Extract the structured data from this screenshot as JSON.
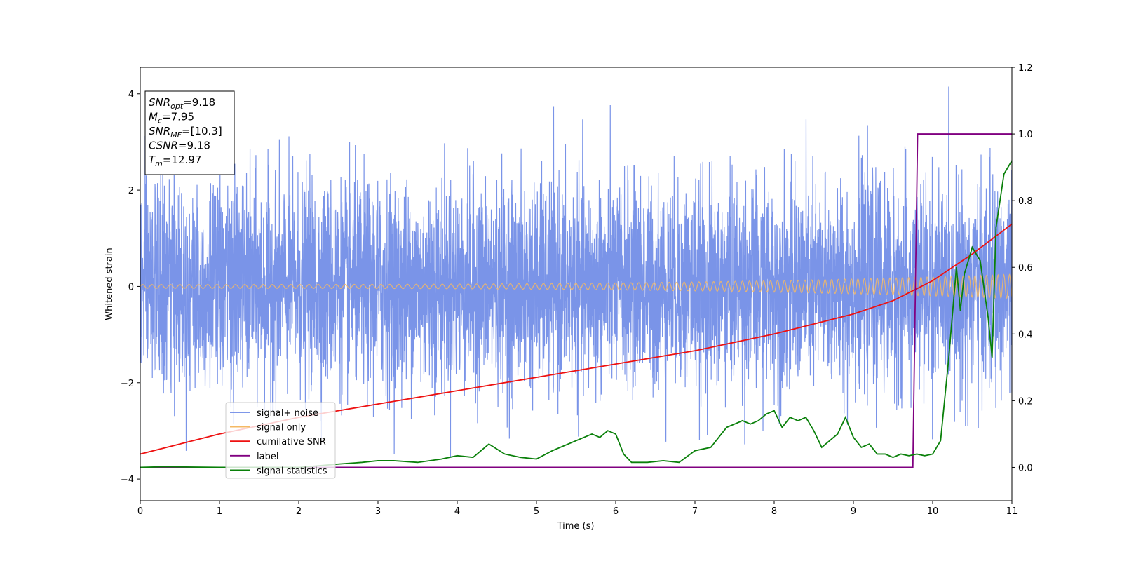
{
  "chart_data": {
    "type": "line",
    "xlabel": "Time (s)",
    "ylabel_left": "Whitened strain",
    "ylabel_right": "",
    "xlim": [
      0,
      11
    ],
    "ylim_left": [
      -4.45,
      4.55
    ],
    "ylim_right": [
      -0.1,
      1.2
    ],
    "x_ticks": [
      0,
      1,
      2,
      3,
      4,
      5,
      6,
      7,
      8,
      9,
      10,
      11
    ],
    "y_left_ticks": [
      -4,
      -2,
      0,
      2,
      4
    ],
    "y_right_ticks": [
      0.0,
      0.2,
      0.4,
      0.6,
      0.8,
      1.0,
      1.2
    ],
    "y_right_tick_labels": [
      "0.0",
      "0.2",
      "0.4",
      "0.6",
      "0.8",
      "1.0",
      "1.2"
    ],
    "grid": false,
    "legend_position": "lower-left",
    "annotation": [
      {
        "base": "SNR",
        "sub": "opt",
        "value": "=9.18"
      },
      {
        "base": "M",
        "sub": "c",
        "value": "=7.95"
      },
      {
        "base": "SNR",
        "sub": "MF",
        "value": "=[10.3]"
      },
      {
        "base": "CSNR",
        "sub": "",
        "value": "=9.18"
      },
      {
        "base": "T",
        "sub": "m",
        "value": "=12.97"
      }
    ],
    "series": [
      {
        "name": "signal+ noise",
        "axis": "left",
        "color": "#6b88e6",
        "kind": "noise",
        "amplitude_std": 1.05,
        "max": 4.15,
        "min": -4.05
      },
      {
        "name": "signal only",
        "axis": "left",
        "color": "#f4b964",
        "kind": "chirp",
        "amplitude_start": 0.04,
        "amplitude_end": 0.25
      },
      {
        "name": "cumilative SNR",
        "axis": "right",
        "color": "#ee1111",
        "x": [
          0,
          0.5,
          1,
          2,
          3,
          4,
          5,
          6,
          7,
          8,
          9,
          9.5,
          10,
          10.5,
          11
        ],
        "values": [
          0.04,
          0.07,
          0.1,
          0.15,
          0.19,
          0.23,
          0.27,
          0.31,
          0.35,
          0.4,
          0.46,
          0.5,
          0.56,
          0.64,
          0.73
        ]
      },
      {
        "name": "label",
        "axis": "right",
        "color": "#800080",
        "x": [
          0,
          9.75,
          9.81,
          11
        ],
        "values": [
          0,
          0,
          1,
          1
        ]
      },
      {
        "name": "signal statistics",
        "axis": "right",
        "color": "#0a800a",
        "x": [
          0,
          0.3,
          1.0,
          2.0,
          2.5,
          2.8,
          3.0,
          3.2,
          3.5,
          3.8,
          4.0,
          4.2,
          4.4,
          4.6,
          4.8,
          5.0,
          5.2,
          5.4,
          5.6,
          5.7,
          5.8,
          5.9,
          6.0,
          6.1,
          6.2,
          6.4,
          6.6,
          6.8,
          7.0,
          7.2,
          7.4,
          7.5,
          7.6,
          7.7,
          7.8,
          7.9,
          8.0,
          8.1,
          8.2,
          8.3,
          8.4,
          8.5,
          8.6,
          8.7,
          8.8,
          8.9,
          9.0,
          9.1,
          9.2,
          9.3,
          9.4,
          9.5,
          9.6,
          9.7,
          9.8,
          9.9,
          10.0,
          10.1,
          10.2,
          10.3,
          10.35,
          10.4,
          10.5,
          10.6,
          10.7,
          10.75,
          10.8,
          10.9,
          11.0
        ],
        "values": [
          0.0,
          0.002,
          0.0,
          0.0,
          0.01,
          0.015,
          0.02,
          0.02,
          0.015,
          0.025,
          0.035,
          0.03,
          0.07,
          0.04,
          0.03,
          0.025,
          0.05,
          0.07,
          0.09,
          0.1,
          0.09,
          0.11,
          0.1,
          0.04,
          0.015,
          0.015,
          0.02,
          0.015,
          0.05,
          0.06,
          0.12,
          0.13,
          0.14,
          0.13,
          0.14,
          0.16,
          0.17,
          0.12,
          0.15,
          0.14,
          0.15,
          0.11,
          0.06,
          0.08,
          0.1,
          0.15,
          0.09,
          0.06,
          0.07,
          0.04,
          0.04,
          0.03,
          0.04,
          0.035,
          0.04,
          0.035,
          0.04,
          0.08,
          0.32,
          0.6,
          0.47,
          0.58,
          0.66,
          0.62,
          0.45,
          0.33,
          0.72,
          0.88,
          0.92
        ]
      }
    ]
  }
}
